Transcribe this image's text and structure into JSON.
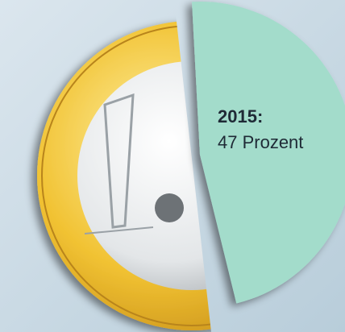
{
  "chart_data": {
    "type": "pie",
    "categories": [
      "2015:"
    ],
    "values": [
      47
    ],
    "value_labels": [
      "47 Prozent"
    ],
    "color": "#a3dccb"
  }
}
